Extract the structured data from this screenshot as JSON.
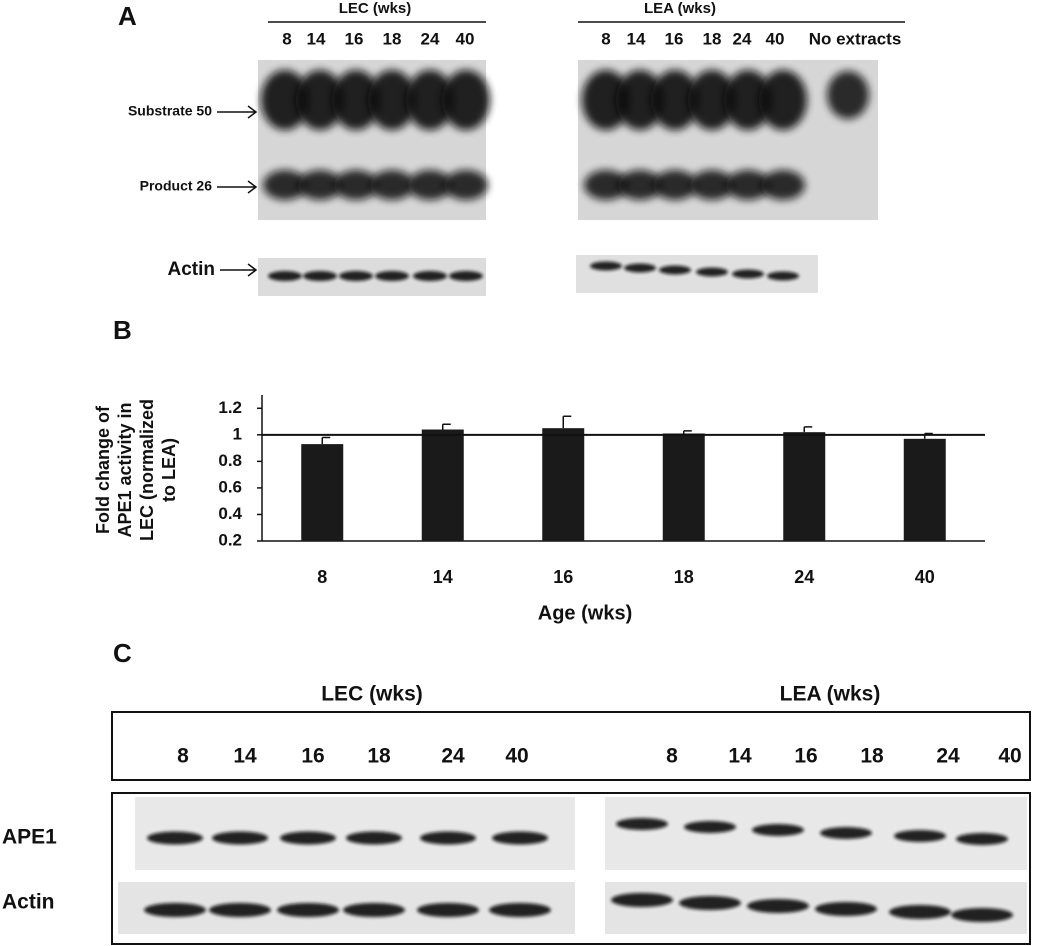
{
  "panel_a": {
    "label": "A",
    "lec_header": "LEC (wks)",
    "lea_header": "LEA (wks)",
    "lec_lanes": [
      "8",
      "14",
      "16",
      "18",
      "24",
      "40"
    ],
    "lea_lanes": [
      "8",
      "14",
      "16",
      "18",
      "24",
      "40"
    ],
    "no_extracts": "No extracts",
    "substrate": "Substrate 50",
    "product": "Product 26",
    "actin": "Actin"
  },
  "panel_b": {
    "label": "B"
  },
  "chart_data": {
    "type": "bar",
    "y_label": [
      "Fold change of",
      "APE1 activity in",
      "LEC (normalized",
      "to LEA)"
    ],
    "x_label": "Age (wks)",
    "categories": [
      "8",
      "14",
      "16",
      "18",
      "24",
      "40"
    ],
    "values": [
      0.93,
      1.04,
      1.05,
      1.01,
      1.02,
      0.97
    ],
    "errors": [
      0.05,
      0.04,
      0.09,
      0.02,
      0.04,
      0.04
    ],
    "color": "#1a1a1a",
    "reference_line": 1,
    "ylim": [
      0.2,
      1.3
    ],
    "yticks": [
      0.2,
      0.4,
      0.6,
      0.8,
      1,
      1.2
    ]
  },
  "panel_c": {
    "label": "C",
    "lec_header": "LEC (wks)",
    "lea_header": "LEA (wks)",
    "lec_lanes": [
      "8",
      "14",
      "16",
      "18",
      "24",
      "40"
    ],
    "lea_lanes": [
      "8",
      "14",
      "16",
      "18",
      "24",
      "40"
    ],
    "ape1": "APE1",
    "actin": "Actin"
  }
}
